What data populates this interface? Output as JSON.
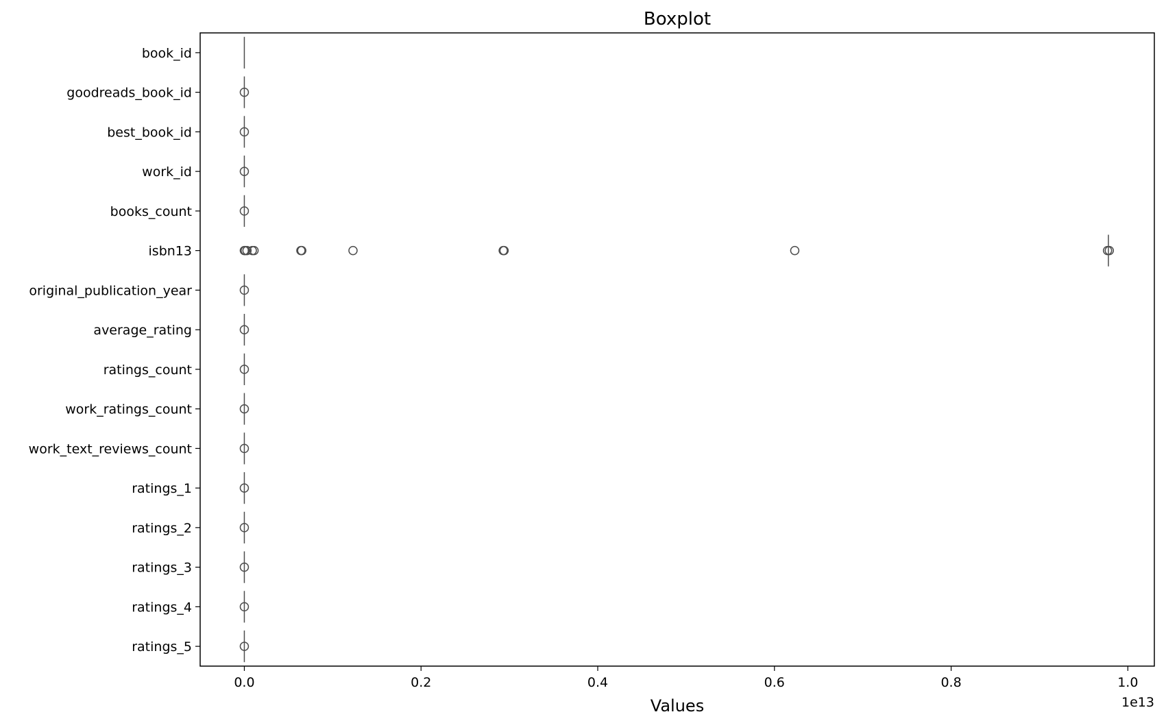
{
  "chart_data": {
    "type": "boxplot",
    "orientation": "horizontal",
    "title": "Boxplot",
    "xlabel": "Values",
    "ylabel": "",
    "x_offset_label": "1e13",
    "x_scale_exponent": 13,
    "xlim": [
      -0.05,
      1.03
    ],
    "x_ticks": [
      0.0,
      0.2,
      0.4,
      0.6,
      0.8,
      1.0
    ],
    "x_tick_labels": [
      "0.0",
      "0.2",
      "0.4",
      "0.6",
      "0.8",
      "1.0"
    ],
    "grid": false,
    "legend": "none",
    "colors": {
      "box": "#4c4c4c",
      "axis": "#000000",
      "background": "#ffffff"
    },
    "categories": [
      "book_id",
      "goodreads_book_id",
      "best_book_id",
      "work_id",
      "books_count",
      "isbn13",
      "original_publication_year",
      "average_rating",
      "ratings_count",
      "work_ratings_count",
      "work_text_reviews_count",
      "ratings_1",
      "ratings_2",
      "ratings_3",
      "ratings_4",
      "ratings_5"
    ],
    "series": [
      {
        "category": "book_id",
        "q1": 0,
        "median": 0,
        "q3": 0,
        "whisker_low": 0,
        "whisker_high": 0,
        "outliers": []
      },
      {
        "category": "goodreads_book_id",
        "q1": 0,
        "median": 0,
        "q3": 0,
        "whisker_low": 0,
        "whisker_high": 0,
        "outliers": [
          3e-07
        ]
      },
      {
        "category": "best_book_id",
        "q1": 0,
        "median": 0,
        "q3": 0,
        "whisker_low": 0,
        "whisker_high": 0,
        "outliers": [
          3e-07
        ]
      },
      {
        "category": "work_id",
        "q1": 0,
        "median": 0,
        "q3": 0,
        "whisker_low": 0,
        "whisker_high": 0,
        "outliers": [
          5e-07
        ]
      },
      {
        "category": "books_count",
        "q1": 0,
        "median": 0,
        "q3": 0,
        "whisker_low": 0,
        "whisker_high": 0,
        "outliers": [
          0.0
        ]
      },
      {
        "category": "isbn13",
        "q1": 0.978,
        "median": 0.978,
        "q3": 0.978,
        "whisker_low": 0.978,
        "whisker_high": 0.978,
        "outliers": [
          0.0,
          0.001,
          0.003,
          0.009,
          0.011,
          0.064,
          0.065,
          0.123,
          0.293,
          0.294,
          0.623,
          0.977,
          0.979
        ]
      },
      {
        "category": "original_publication_year",
        "q1": 0,
        "median": 0,
        "q3": 0,
        "whisker_low": 0,
        "whisker_high": 0,
        "outliers": [
          0.0
        ]
      },
      {
        "category": "average_rating",
        "q1": 0,
        "median": 0,
        "q3": 0,
        "whisker_low": 0,
        "whisker_high": 0,
        "outliers": [
          0.0
        ]
      },
      {
        "category": "ratings_count",
        "q1": 0,
        "median": 0,
        "q3": 0,
        "whisker_low": 0,
        "whisker_high": 0,
        "outliers": [
          5e-07
        ]
      },
      {
        "category": "work_ratings_count",
        "q1": 0,
        "median": 0,
        "q3": 0,
        "whisker_low": 0,
        "whisker_high": 0,
        "outliers": [
          5e-07
        ]
      },
      {
        "category": "work_text_reviews_count",
        "q1": 0,
        "median": 0,
        "q3": 0,
        "whisker_low": 0,
        "whisker_high": 0,
        "outliers": [
          0.0
        ]
      },
      {
        "category": "ratings_1",
        "q1": 0,
        "median": 0,
        "q3": 0,
        "whisker_low": 0,
        "whisker_high": 0,
        "outliers": [
          5e-07
        ]
      },
      {
        "category": "ratings_2",
        "q1": 0,
        "median": 0,
        "q3": 0,
        "whisker_low": 0,
        "whisker_high": 0,
        "outliers": [
          5e-07
        ]
      },
      {
        "category": "ratings_3",
        "q1": 0,
        "median": 0,
        "q3": 0,
        "whisker_low": 0,
        "whisker_high": 0,
        "outliers": [
          5e-07
        ]
      },
      {
        "category": "ratings_4",
        "q1": 0,
        "median": 0,
        "q3": 0,
        "whisker_low": 0,
        "whisker_high": 0,
        "outliers": [
          5e-07
        ]
      },
      {
        "category": "ratings_5",
        "q1": 0,
        "median": 0,
        "q3": 0,
        "whisker_low": 0,
        "whisker_high": 0,
        "outliers": [
          5e-07
        ]
      }
    ]
  }
}
